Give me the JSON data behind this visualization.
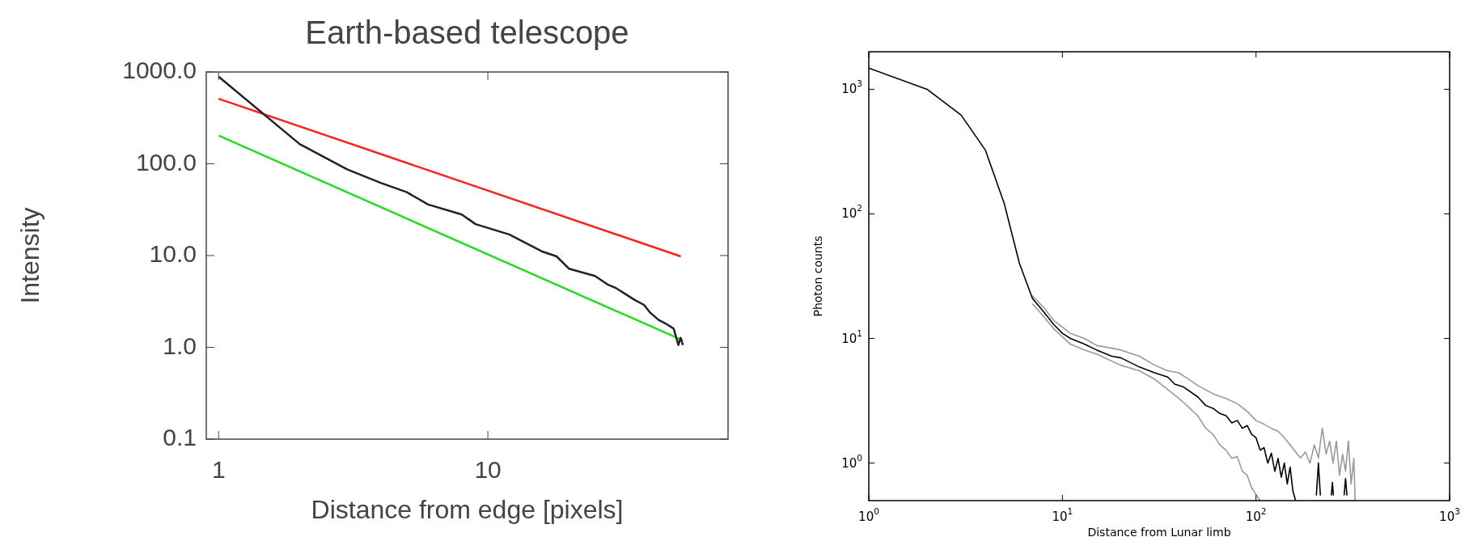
{
  "chart_data": [
    {
      "type": "line",
      "title": "Earth-based telescope",
      "xlabel": "Distance from edge [pixels]",
      "ylabel": "Intensity",
      "log": "xy",
      "xlim": [
        0.9,
        78
      ],
      "ylim": [
        0.1,
        1000
      ],
      "xticks": [
        1,
        10
      ],
      "yticks": [
        {
          "value": 0.1,
          "label": "0.1"
        },
        {
          "value": 1,
          "label": "1.0"
        },
        {
          "value": 10,
          "label": "10.0"
        },
        {
          "value": 100,
          "label": "100.0"
        },
        {
          "value": 1000,
          "label": "1000.0"
        }
      ],
      "series": [
        {
          "color": "#ff2020",
          "x": [
            1,
            52
          ],
          "values": [
            511,
            9.8
          ]
        },
        {
          "color": "#22dd22",
          "x": [
            1,
            53
          ],
          "values": [
            203,
            1.19
          ]
        },
        {
          "color": "#222222",
          "x": [
            1,
            2,
            3,
            4,
            5,
            6,
            8,
            9,
            12,
            16,
            18,
            20,
            25,
            28,
            30,
            32,
            35,
            38,
            40,
            43,
            46,
            49,
            51,
            52,
            53
          ],
          "values": [
            890,
            164,
            87,
            62,
            49,
            36,
            28,
            22,
            17,
            11,
            9.8,
            7.2,
            6.0,
            4.8,
            4.4,
            3.9,
            3.3,
            2.9,
            2.4,
            2.0,
            1.8,
            1.6,
            1.06,
            1.27,
            1.06
          ]
        }
      ]
    },
    {
      "type": "line",
      "xlabel": "Distance from Lunar limb",
      "ylabel": "Photon counts",
      "log": "xy",
      "xlim": [
        1,
        1000
      ],
      "ylim": [
        0.5,
        2000
      ],
      "xticks": [
        {
          "value": 1,
          "label": "10$^{0}$"
        },
        {
          "value": 10,
          "label": "10$^{1}$"
        },
        {
          "value": 100,
          "label": "10$^{2}$"
        },
        {
          "value": 1000,
          "label": "10$^{3}$"
        }
      ],
      "yticks": [
        {
          "value": 1,
          "label": "10$^{0}$"
        },
        {
          "value": 10,
          "label": "10$^{1}$"
        },
        {
          "value": 100,
          "label": "10$^{2}$"
        },
        {
          "value": 1000,
          "label": "10$^{3}$"
        }
      ],
      "series": [
        {
          "color": "#999999",
          "x": [
            7,
            8,
            9,
            11,
            13,
            15,
            20,
            25,
            30,
            35,
            40,
            45,
            50,
            60,
            70,
            80,
            90,
            100,
            110,
            120,
            130,
            140,
            150,
            160,
            170,
            180,
            190,
            200,
            210,
            220,
            230,
            240,
            250,
            260,
            270,
            280,
            290,
            300,
            310,
            320,
            325
          ],
          "values": [
            22,
            17.7,
            14,
            11,
            10,
            8.8,
            8.1,
            7.2,
            6.1,
            5.5,
            5.3,
            4.7,
            4.2,
            3.6,
            3.3,
            3.0,
            2.6,
            2.2,
            2.05,
            1.9,
            1.8,
            1.6,
            1.4,
            1.23,
            1.1,
            1.23,
            1.0,
            1.4,
            1.1,
            1.9,
            1.18,
            1.5,
            1.0,
            1.5,
            0.8,
            1.18,
            0.86,
            1.5,
            0.68,
            1.09,
            0.5
          ]
        },
        {
          "color": "#999999",
          "x": [
            7,
            8,
            9,
            11,
            13,
            15,
            20,
            25,
            30,
            35,
            40,
            45,
            50,
            55,
            60,
            65,
            70,
            75,
            80,
            85,
            90,
            95,
            100,
            105
          ],
          "values": [
            19,
            15,
            12,
            9,
            8.1,
            7.5,
            6.1,
            5.5,
            4.7,
            3.9,
            3.3,
            2.8,
            2.4,
            1.9,
            1.7,
            1.4,
            1.27,
            1.09,
            1.13,
            0.86,
            0.8,
            0.63,
            0.56,
            0.5
          ]
        },
        {
          "color": "#000000",
          "x": [
            1,
            2,
            3,
            4,
            5,
            6,
            7,
            8,
            9,
            10,
            11,
            13,
            15,
            18,
            20,
            25,
            30,
            35,
            38,
            42,
            50,
            55,
            60,
            65,
            70,
            75,
            80,
            85,
            90,
            95,
            100,
            105,
            110,
            115,
            120,
            125,
            130,
            135,
            140,
            145,
            150,
            155,
            160,
            180,
            205,
            210,
            215,
            230,
            245,
            248,
            251,
            270,
            285,
            290,
            295
          ],
          "values": [
            1480,
            1000,
            620,
            325,
            122,
            40,
            21,
            16.4,
            13,
            11,
            10,
            9,
            8.1,
            7.2,
            7.0,
            5.9,
            5.3,
            4.9,
            4.3,
            4.1,
            3.4,
            2.9,
            2.75,
            2.5,
            2.4,
            2.1,
            2.2,
            1.9,
            2.0,
            1.7,
            1.6,
            1.27,
            1.33,
            1.0,
            1.2,
            0.86,
            1.09,
            0.77,
            1.0,
            0.68,
            0.93,
            0.6,
            0.5,
            null,
            0.55,
            1.0,
            0.55,
            null,
            0.55,
            0.7,
            0.55,
            null,
            0.55,
            0.75,
            0.55
          ]
        }
      ]
    }
  ]
}
